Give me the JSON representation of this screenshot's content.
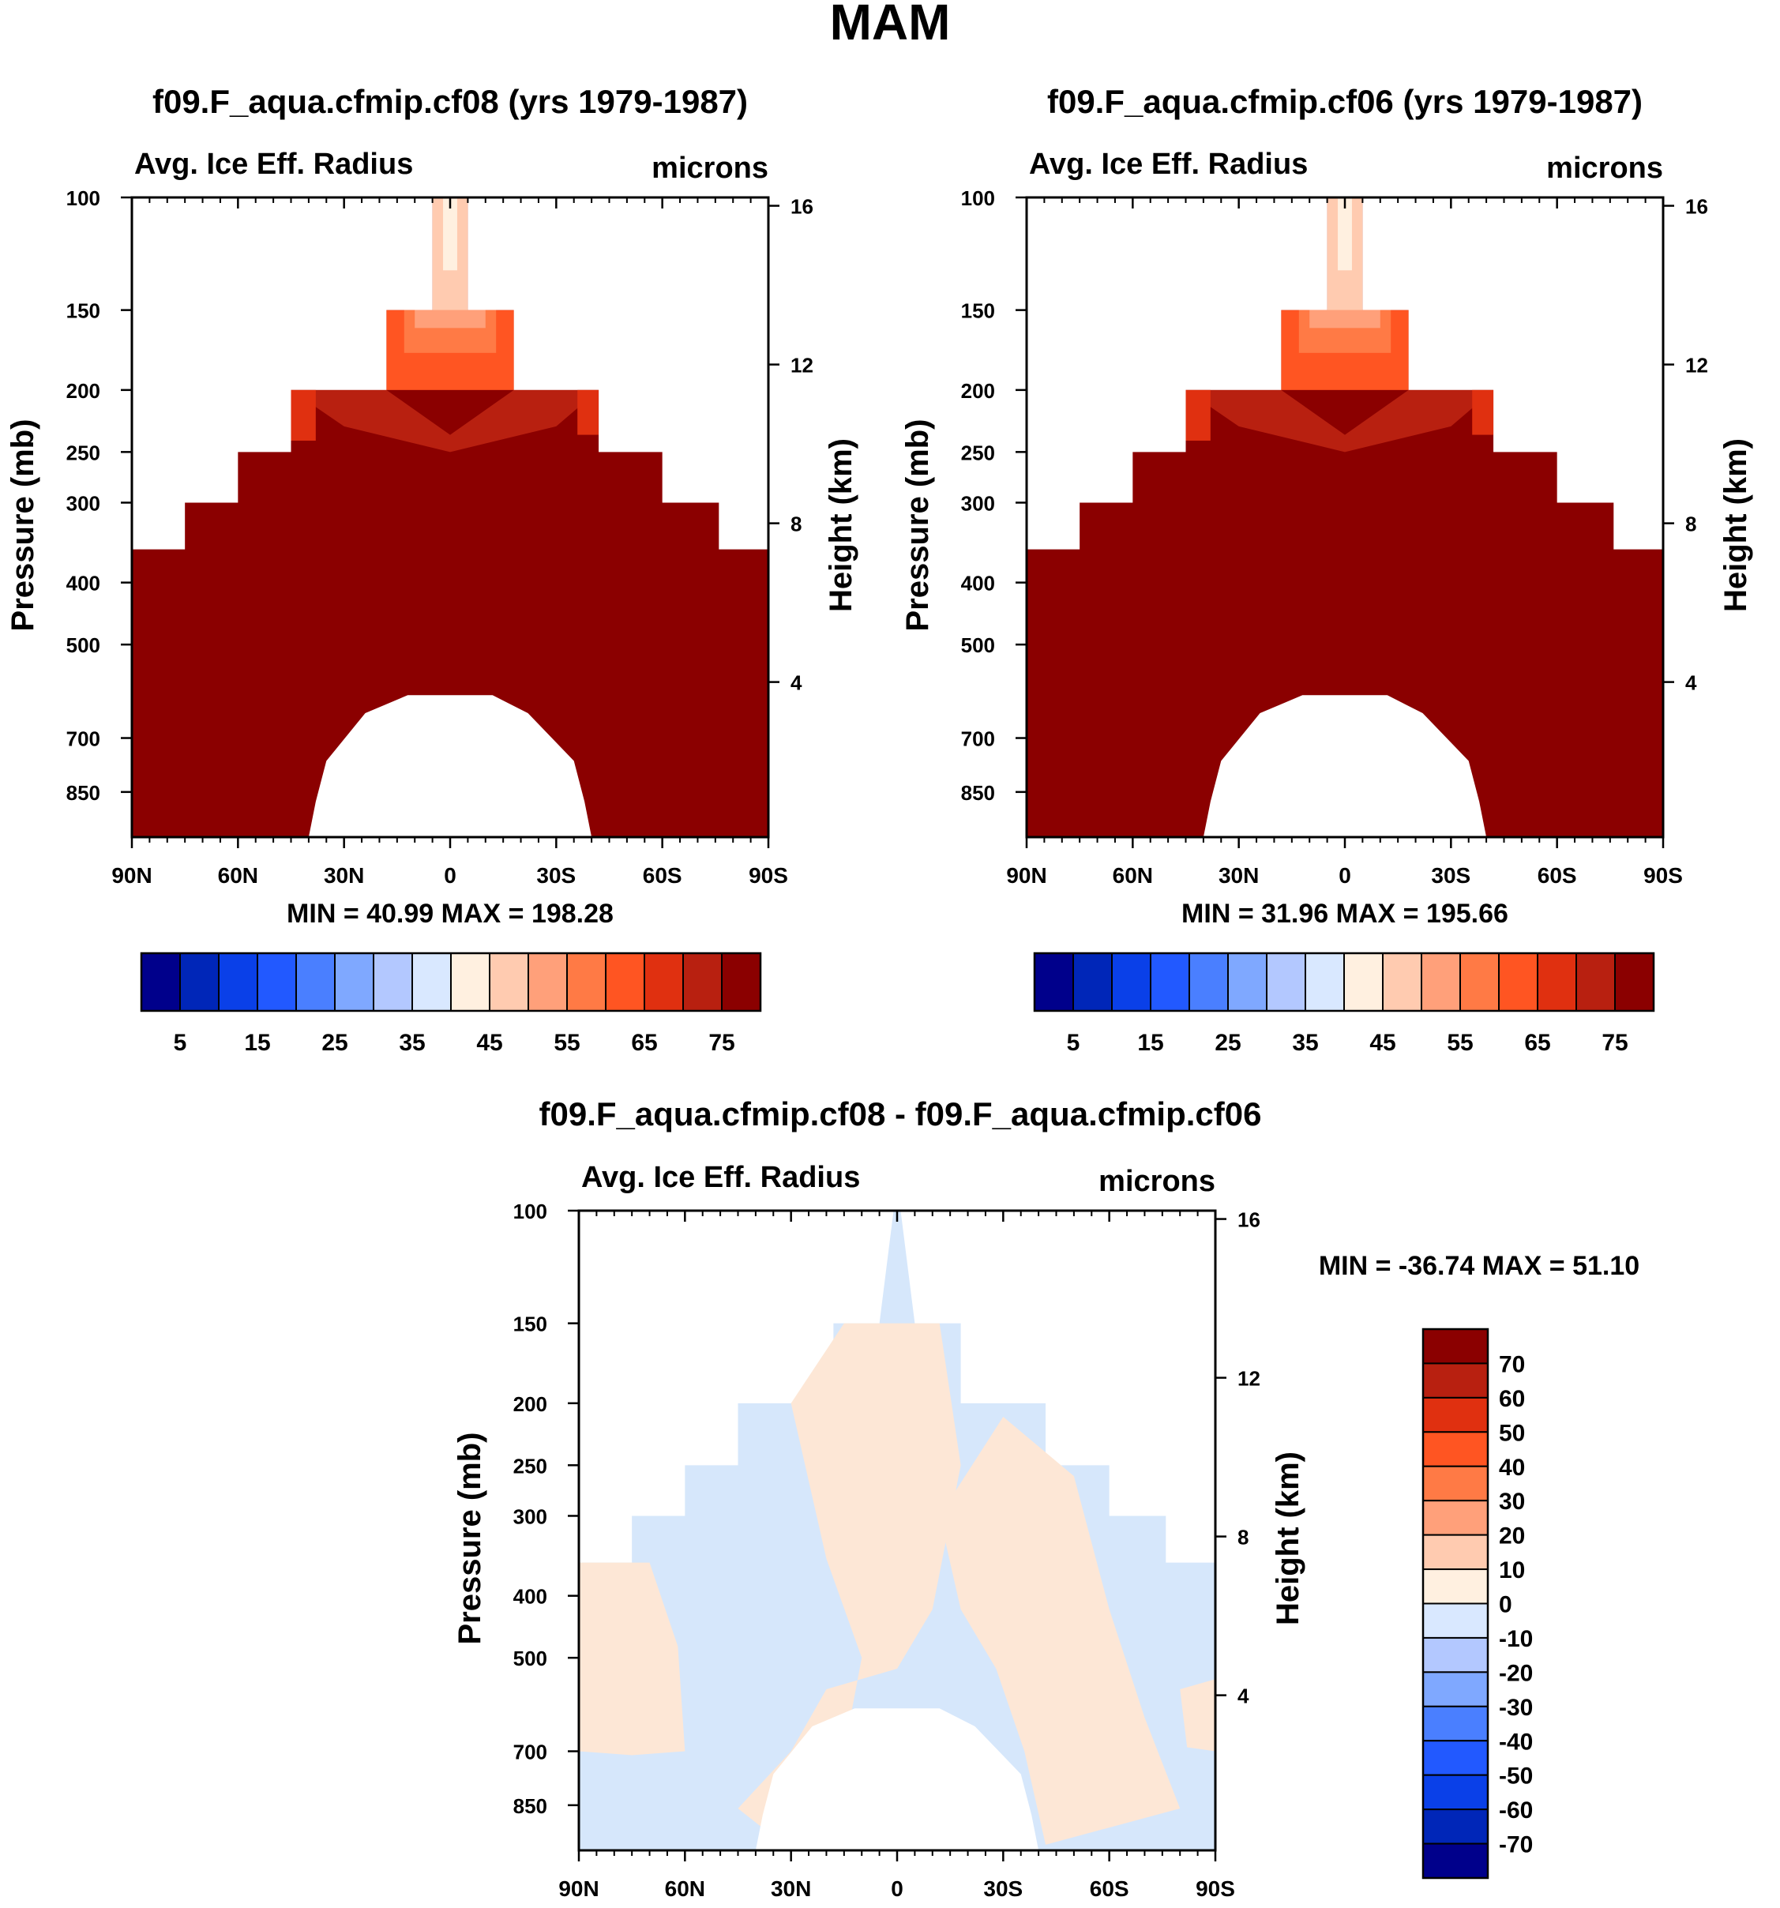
{
  "figure_title": "MAM",
  "chart_data": [
    {
      "type": "heatmap",
      "title": "f09.F_aqua.cfmip.cf08 (yrs 1979-1987)",
      "subtitle_left": "Avg. Ice Eff. Radius",
      "subtitle_right": "microns",
      "ylabel": "Pressure (mb)",
      "ylabel_right": "Height (km)",
      "x_ticks": [
        "90N",
        "60N",
        "30N",
        "0",
        "30S",
        "60S",
        "90S"
      ],
      "y_ticks": [
        "100",
        "150",
        "200",
        "250",
        "300",
        "400",
        "500",
        "700",
        "850"
      ],
      "y2_ticks": [
        "16",
        "12",
        "8",
        "4"
      ],
      "stats": "MIN =  40.99  MAX = 198.28",
      "colorbar_ticks": [
        "5",
        "15",
        "25",
        "35",
        "45",
        "55",
        "65",
        "75"
      ]
    },
    {
      "type": "heatmap",
      "title": "f09.F_aqua.cfmip.cf06 (yrs 1979-1987)",
      "subtitle_left": "Avg. Ice Eff. Radius",
      "subtitle_right": "microns",
      "ylabel": "Pressure (mb)",
      "ylabel_right": "Height (km)",
      "x_ticks": [
        "90N",
        "60N",
        "30N",
        "0",
        "30S",
        "60S",
        "90S"
      ],
      "y_ticks": [
        "100",
        "150",
        "200",
        "250",
        "300",
        "400",
        "500",
        "700",
        "850"
      ],
      "y2_ticks": [
        "16",
        "12",
        "8",
        "4"
      ],
      "stats": "MIN =  31.96  MAX = 195.66",
      "colorbar_ticks": [
        "5",
        "15",
        "25",
        "35",
        "45",
        "55",
        "65",
        "75"
      ]
    },
    {
      "type": "heatmap",
      "title": "f09.F_aqua.cfmip.cf08 - f09.F_aqua.cfmip.cf06",
      "subtitle_left": "Avg. Ice Eff. Radius",
      "subtitle_right": "microns",
      "ylabel": "Pressure (mb)",
      "ylabel_right": "Height (km)",
      "x_ticks": [
        "90N",
        "60N",
        "30N",
        "0",
        "30S",
        "60S",
        "90S"
      ],
      "y_ticks": [
        "100",
        "150",
        "200",
        "250",
        "300",
        "400",
        "500",
        "700",
        "850"
      ],
      "y2_ticks": [
        "16",
        "12",
        "8",
        "4"
      ],
      "stats": "MIN = -36.74  MAX =  51.10",
      "colorbar_ticks": [
        "70",
        "60",
        "50",
        "40",
        "30",
        "20",
        "10",
        "0",
        "-10",
        "-20",
        "-30",
        "-40",
        "-50",
        "-60",
        "-70"
      ]
    }
  ],
  "colors": {
    "scale": [
      "#00008b",
      "#0026b8",
      "#0a40e8",
      "#2259ff",
      "#4a7fff",
      "#7fa8ff",
      "#b3c8ff",
      "#d9e8ff",
      "#fff0e0",
      "#ffcbb0",
      "#ffa07a",
      "#ff7a45",
      "#ff5522",
      "#e03010",
      "#b82010",
      "#8b0000"
    ],
    "dark_red": "#8b0000",
    "diff_pos": "#fde7d6",
    "diff_neg": "#d6e7fb"
  }
}
